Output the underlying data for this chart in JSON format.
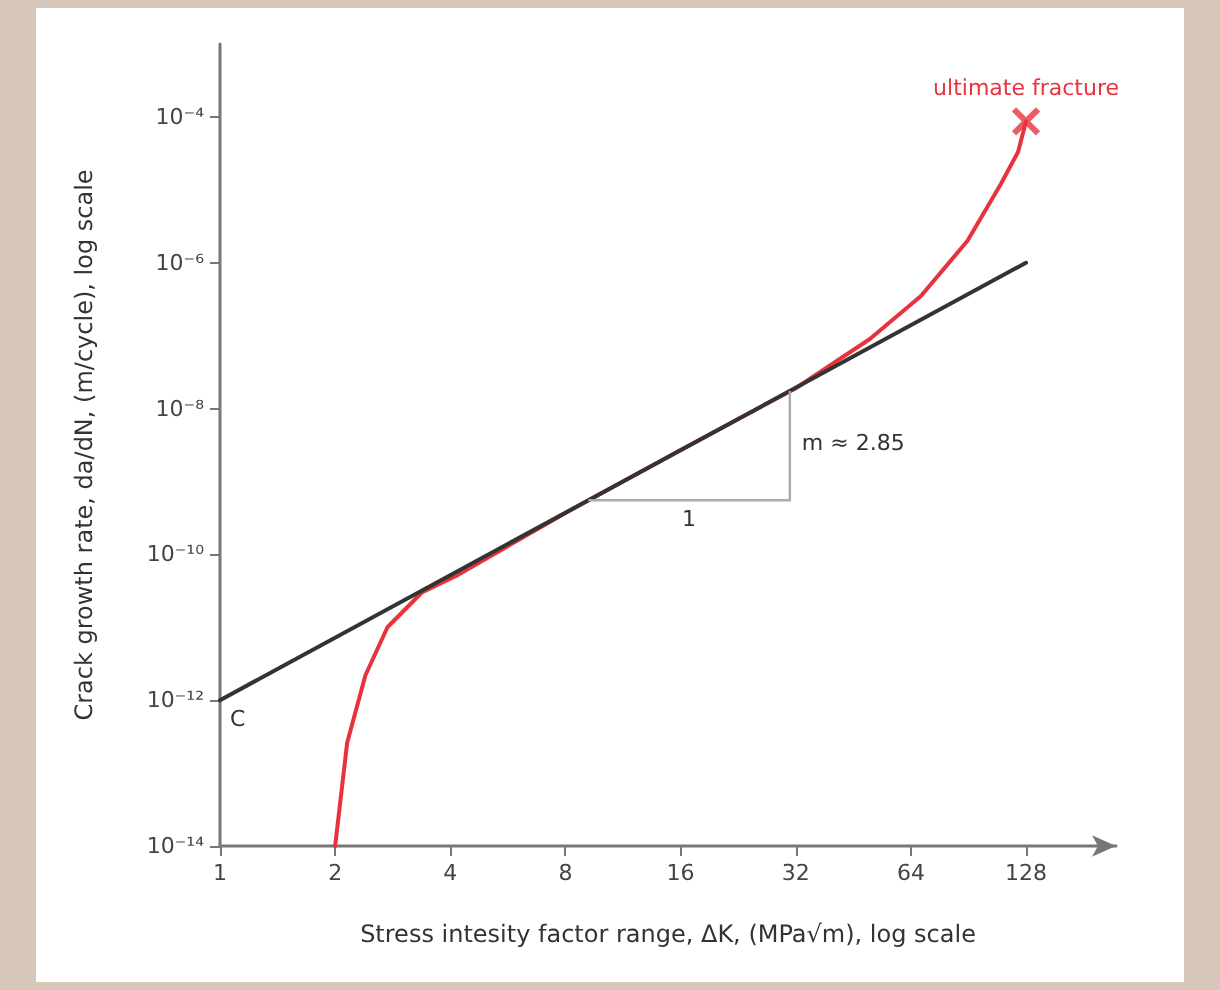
{
  "chart_data": {
    "type": "line",
    "xlabel": "Stress intesity factor range, ΔK, (MPa√m), log scale",
    "ylabel": "Crack growth rate, da/dN, (m/cycle), log scale",
    "log": "xy",
    "grid": false,
    "xlim": [
      1,
      220
    ],
    "xticks": [
      1,
      2,
      4,
      8,
      16,
      32,
      64,
      128
    ],
    "ylim": [
      1e-14,
      0.001
    ],
    "yticks": [
      {
        "value": 1e-14,
        "label": "10⁻¹⁴"
      },
      {
        "value": 1e-12,
        "label": "10⁻¹²"
      },
      {
        "value": 1e-10,
        "label": "10⁻¹⁰"
      },
      {
        "value": 1e-08,
        "label": "10⁻⁸"
      },
      {
        "value": 1e-06,
        "label": "10⁻⁶"
      },
      {
        "value": 0.0001,
        "label": "10⁻⁴"
      }
    ],
    "series": [
      {
        "color": "#e8323c",
        "x": [
          2,
          2.15,
          2.4,
          2.74,
          3.37,
          4.15,
          8,
          16,
          32,
          50,
          68,
          90,
          110,
          122,
          128
        ],
        "values": [
          1e-14,
          2.6e-13,
          2.2e-12,
          1e-11,
          3e-11,
          5.1e-11,
          3.7e-10,
          2.7e-09,
          1.9e-08,
          9e-08,
          3.5e-07,
          2e-06,
          1.2e-05,
          3.3e-05,
          8.7e-05
        ]
      },
      {
        "color": "#333333",
        "x": [
          1,
          128
        ],
        "values": [
          1e-12,
          1e-06
        ]
      },
      {
        "type": "scatter",
        "marker": "cross",
        "color": "#e8323c",
        "x": [
          128
        ],
        "values": [
          8.7e-05
        ]
      }
    ],
    "annotations": [
      {
        "text": "ultimate fracture",
        "x": 128,
        "y": 8.7e-05
      },
      {
        "text": "C",
        "x": 1,
        "y": 1e-12
      },
      "1",
      "m ≈ 2.85"
    ]
  }
}
